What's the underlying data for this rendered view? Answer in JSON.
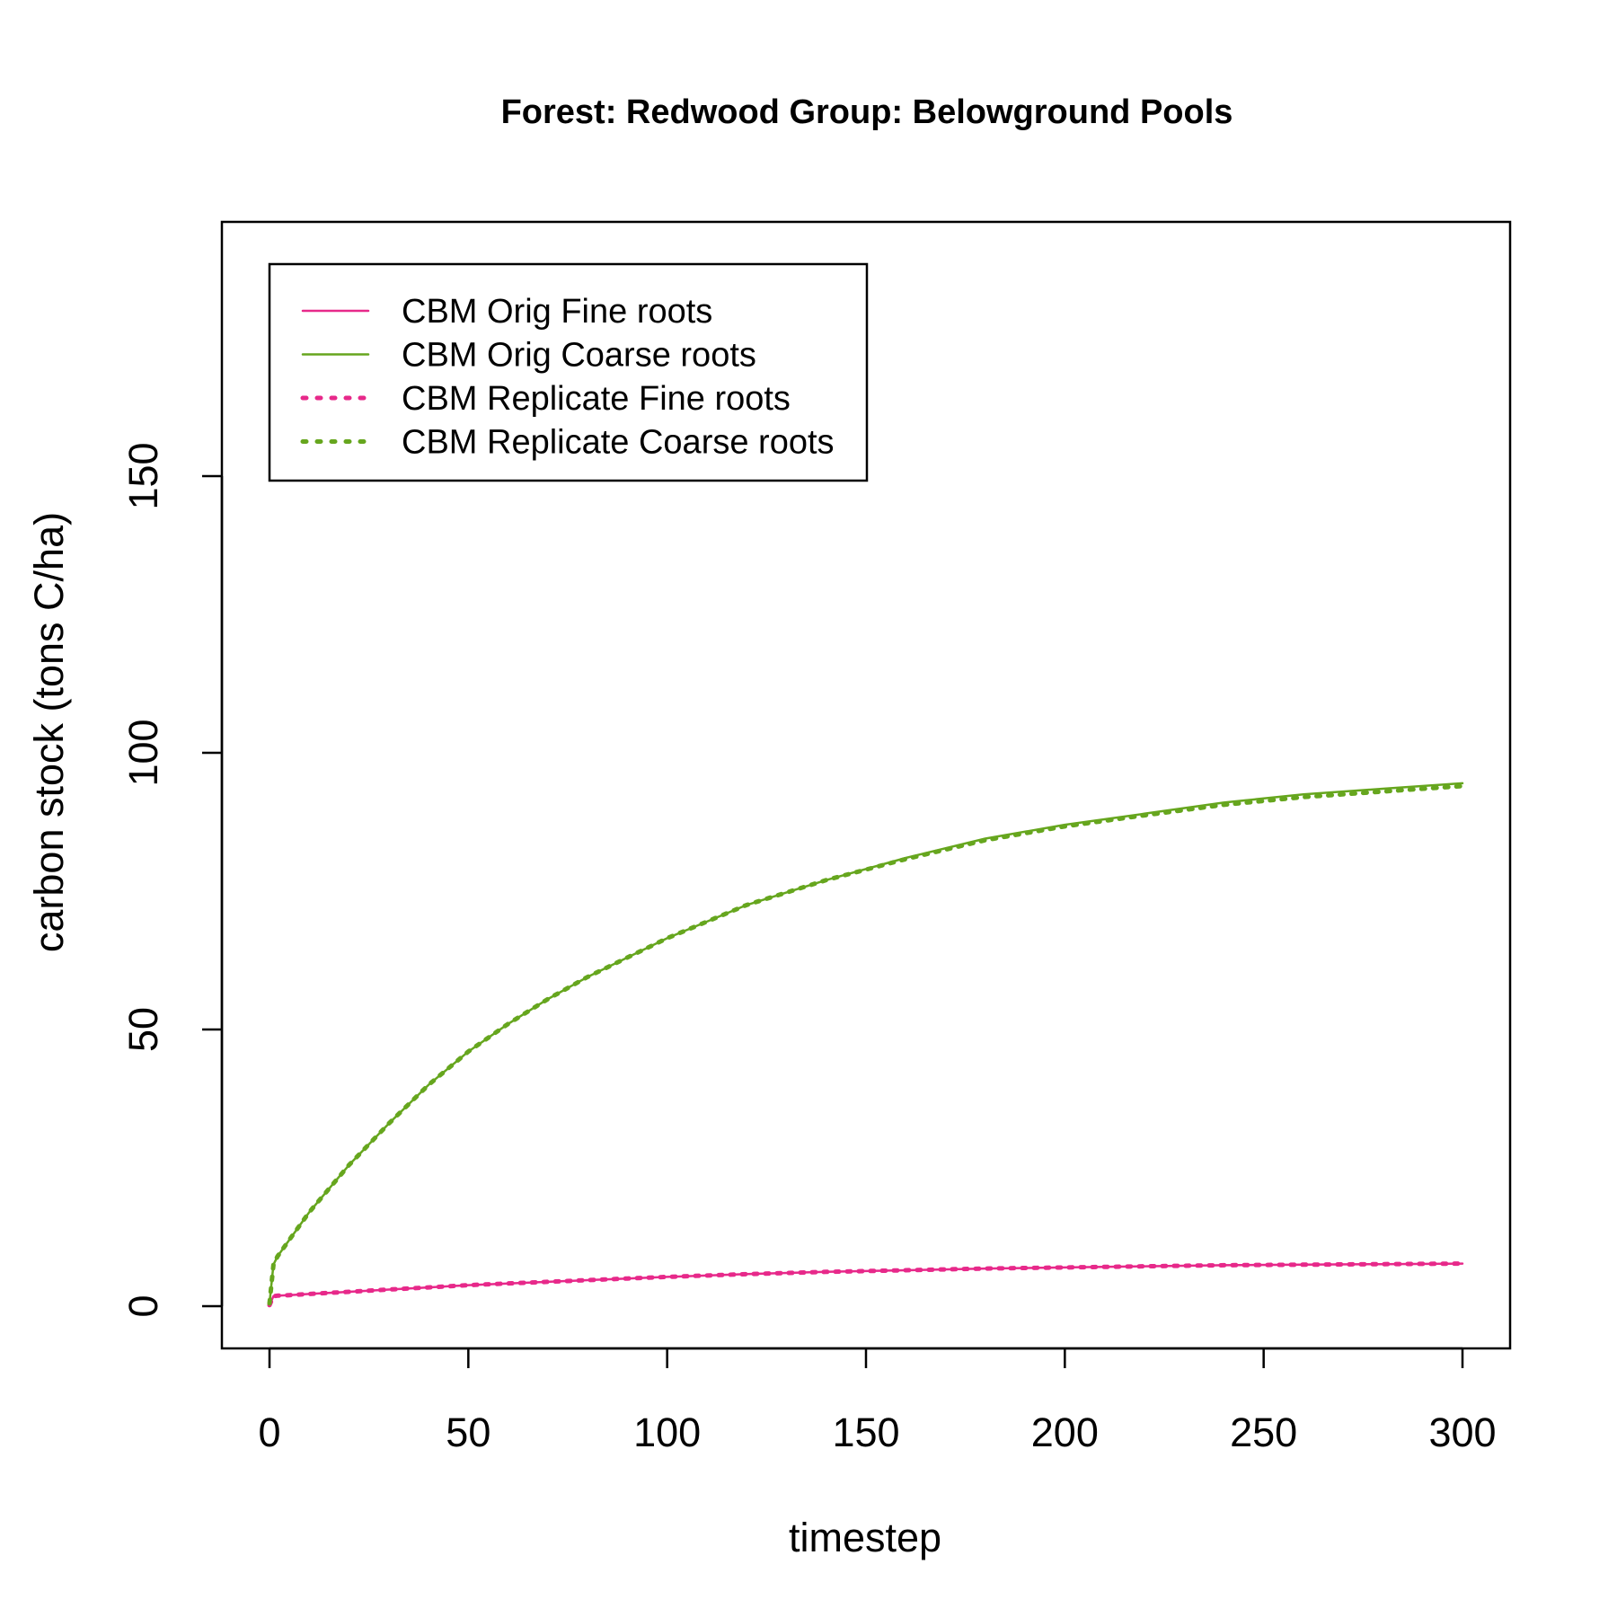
{
  "chart_data": {
    "type": "line",
    "title": "Forest: Redwood Group: Belowground Pools",
    "xlabel": "timestep",
    "ylabel": "carbon stock (tons C/ha)",
    "xlim": [
      0,
      300
    ],
    "ylim": [
      0,
      190
    ],
    "x_ticks": [
      "0",
      "50",
      "100",
      "150",
      "200",
      "250",
      "300"
    ],
    "y_ticks": [
      "0",
      "50",
      "100",
      "150"
    ],
    "grid": false,
    "legend_position": "top-left",
    "x": [
      0,
      1,
      2,
      5,
      10,
      20,
      30,
      40,
      50,
      60,
      70,
      80,
      90,
      100,
      120,
      140,
      160,
      180,
      200,
      220,
      240,
      260,
      280,
      300
    ],
    "series": [
      {
        "name": "CBM Orig Fine roots",
        "color": "#e7298a",
        "line_style": "solid",
        "values": [
          0.2,
          1.8,
          1.9,
          2.0,
          2.2,
          2.6,
          3.0,
          3.4,
          3.8,
          4.1,
          4.4,
          4.7,
          5.0,
          5.3,
          5.8,
          6.2,
          6.5,
          6.8,
          7.0,
          7.2,
          7.4,
          7.5,
          7.6,
          7.7
        ]
      },
      {
        "name": "CBM Orig Coarse roots",
        "color": "#66a61e",
        "line_style": "solid",
        "values": [
          0.5,
          7.5,
          9.0,
          12.0,
          17.0,
          25.5,
          33.0,
          40.0,
          46.0,
          51.0,
          55.5,
          59.5,
          63.0,
          66.5,
          72.5,
          77.0,
          81.0,
          84.5,
          87.0,
          89.0,
          91.0,
          92.5,
          93.5,
          94.5
        ]
      },
      {
        "name": "CBM Replicate Fine roots",
        "color": "#e7298a",
        "line_style": "dotted",
        "values": [
          0.2,
          1.8,
          1.9,
          2.0,
          2.2,
          2.6,
          3.0,
          3.4,
          3.8,
          4.1,
          4.4,
          4.7,
          5.0,
          5.3,
          5.8,
          6.2,
          6.5,
          6.8,
          7.0,
          7.2,
          7.4,
          7.5,
          7.6,
          7.7
        ]
      },
      {
        "name": "CBM Replicate Coarse roots",
        "color": "#66a61e",
        "line_style": "dotted",
        "values": [
          0.5,
          7.5,
          9.0,
          12.0,
          17.0,
          25.5,
          33.0,
          40.0,
          46.0,
          51.0,
          55.5,
          59.5,
          63.0,
          66.5,
          72.5,
          77.0,
          80.8,
          84.2,
          86.7,
          88.7,
          90.6,
          92.0,
          93.0,
          94.0
        ]
      }
    ]
  }
}
